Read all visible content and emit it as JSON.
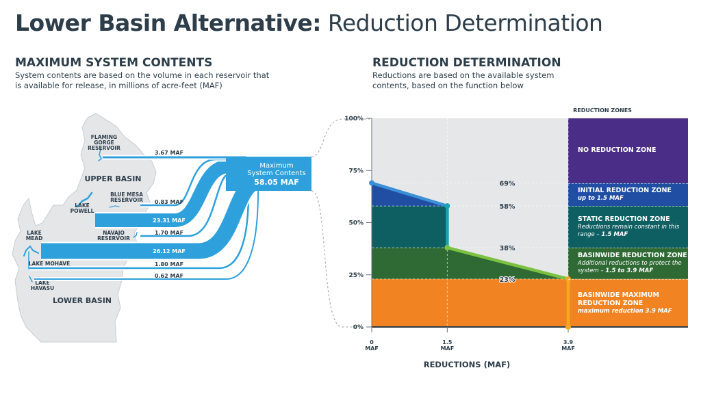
{
  "title": {
    "bold": "Lower Basin Alternative:",
    "regular": "Reduction Determination"
  },
  "left": {
    "heading": "MAXIMUM SYSTEM CONTENTS",
    "description": "System contents are based on the volume in each reservoir that is available for release, in millions of acre-feet (MAF)",
    "regions": [
      "UPPER BASIN",
      "LOWER BASIN"
    ],
    "reservoirs": [
      {
        "name": "FLAMING GORGE RESERVOIR",
        "value": "3.67 MAF"
      },
      {
        "name": "BLUE MESA RESERVOIR",
        "value": "0.83 MAF"
      },
      {
        "name": "LAKE POWELL",
        "value": "23.31 MAF"
      },
      {
        "name": "NAVAJO RESERVOIR",
        "value": "1.70 MAF"
      },
      {
        "name": "LAKE MEAD",
        "value": "26.12 MAF"
      },
      {
        "name": "LAKE MOHAVE",
        "value": "1.80 MAF"
      },
      {
        "name": "LAKE HAVASU",
        "value": "0.62 MAF"
      }
    ],
    "total": {
      "label1": "Maximum",
      "label2": "System Contents",
      "value": "58.05 MAF"
    }
  },
  "right": {
    "heading": "REDUCTION DETERMINATION",
    "description": "Reductions are based on the available system contents, based on the function below",
    "zones_heading": "REDUCTION ZONES",
    "zones": [
      {
        "name": "NO REDUCTION ZONE",
        "desc": "",
        "desc_bold": "",
        "color": "#4a2d86"
      },
      {
        "name": "INITIAL REDUCTION ZONE",
        "desc": "",
        "desc_bold": "up to 1.5 MAF",
        "color": "#1f4ea3"
      },
      {
        "name": "STATIC REDUCTION ZONE",
        "desc": "Reductions remain constant in this range – ",
        "desc_bold": "1.5 MAF",
        "color": "#0e5f62"
      },
      {
        "name": "BASINWIDE REDUCTION ZONE",
        "desc": "Additional reductions to protect the system – ",
        "desc_bold": "1.5 to 3.9 MAF",
        "color": "#2f6a34"
      },
      {
        "name": "BASINWIDE MAXIMUM REDUCTION ZONE",
        "desc": "",
        "desc_bold": "maximum reduction 3.9 MAF",
        "color": "#f28322"
      }
    ]
  },
  "chart_data": {
    "type": "line",
    "xlabel": "REDUCTIONS (MAF)",
    "ylabel": "",
    "xlim": [
      0,
      3.9
    ],
    "ylim": [
      0,
      100
    ],
    "x_ticks": [
      {
        "v": 0,
        "l1": "0",
        "l2": "MAF"
      },
      {
        "v": 1.5,
        "l1": "1.5",
        "l2": "MAF"
      },
      {
        "v": 3.9,
        "l1": "3.9",
        "l2": "MAF"
      }
    ],
    "y_ticks": [
      {
        "v": 0,
        "l": "0%"
      },
      {
        "v": 25,
        "l": "25%"
      },
      {
        "v": 50,
        "l": "50%"
      },
      {
        "v": 75,
        "l": "75%"
      },
      {
        "v": 100,
        "l": "100%"
      }
    ],
    "points": [
      {
        "x": 0,
        "y": 69
      },
      {
        "x": 1.5,
        "y": 58
      },
      {
        "x": 1.5,
        "y": 38
      },
      {
        "x": 3.9,
        "y": 23
      },
      {
        "x": 3.9,
        "y": 0
      }
    ],
    "segment_colors": [
      "#3a8fd6",
      "#17a3b0",
      "#7cc242",
      "#f7a823"
    ],
    "thresholds": [
      {
        "v": 69,
        "l": "69%"
      },
      {
        "v": 58,
        "l": "58%"
      },
      {
        "v": 38,
        "l": "38%"
      },
      {
        "v": 23,
        "l": "23%"
      }
    ],
    "background": "#e6e7e9",
    "grid": true
  }
}
